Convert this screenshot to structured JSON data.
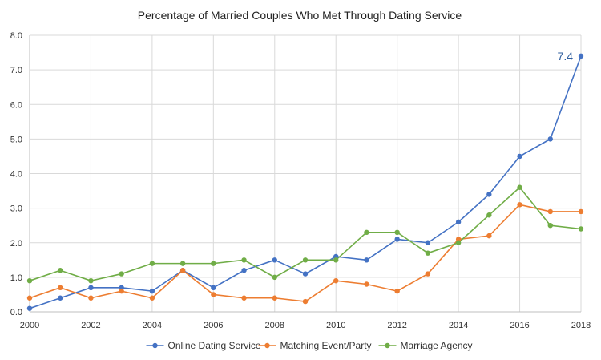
{
  "chart_data": {
    "type": "line",
    "title": "Percentage of Married Couples Who Met Through Dating Service",
    "xlabel": "",
    "ylabel": "",
    "x": [
      2000,
      2001,
      2002,
      2003,
      2004,
      2005,
      2006,
      2007,
      2008,
      2009,
      2010,
      2011,
      2012,
      2013,
      2014,
      2015,
      2016,
      2017,
      2018
    ],
    "xlim": [
      2000,
      2018
    ],
    "ylim": [
      0,
      8
    ],
    "x_ticks": [
      "2000",
      "2002",
      "2004",
      "2006",
      "2008",
      "2010",
      "2012",
      "2014",
      "2016",
      "2018"
    ],
    "y_ticks": [
      "0.0",
      "1.0",
      "2.0",
      "3.0",
      "4.0",
      "5.0",
      "6.0",
      "7.0",
      "8.0"
    ],
    "grid": true,
    "legend_position": "bottom",
    "series": [
      {
        "name": "Online Dating Service",
        "color": "#4472C4",
        "values": [
          0.1,
          0.4,
          0.7,
          0.7,
          0.6,
          1.2,
          0.7,
          1.2,
          1.5,
          1.1,
          1.6,
          1.5,
          2.1,
          2.0,
          2.6,
          3.4,
          4.5,
          5.0,
          7.4
        ]
      },
      {
        "name": "Matching Event/Party",
        "color": "#ED7D31",
        "values": [
          0.4,
          0.7,
          0.4,
          0.6,
          0.4,
          1.2,
          0.5,
          0.4,
          0.4,
          0.3,
          0.9,
          0.8,
          0.6,
          1.1,
          2.1,
          2.2,
          3.1,
          2.9,
          2.9
        ]
      },
      {
        "name": "Marriage Agency",
        "color": "#70AD47",
        "values": [
          0.9,
          1.2,
          0.9,
          1.1,
          1.4,
          1.4,
          1.4,
          1.5,
          1.0,
          1.5,
          1.5,
          2.3,
          2.3,
          1.7,
          2.0,
          2.8,
          3.6,
          2.5,
          2.4
        ]
      }
    ],
    "annotations": [
      {
        "text": "7.4",
        "series": "Online Dating Service",
        "x": 2018,
        "y": 7.4,
        "color": "#2E5D9E"
      }
    ]
  }
}
